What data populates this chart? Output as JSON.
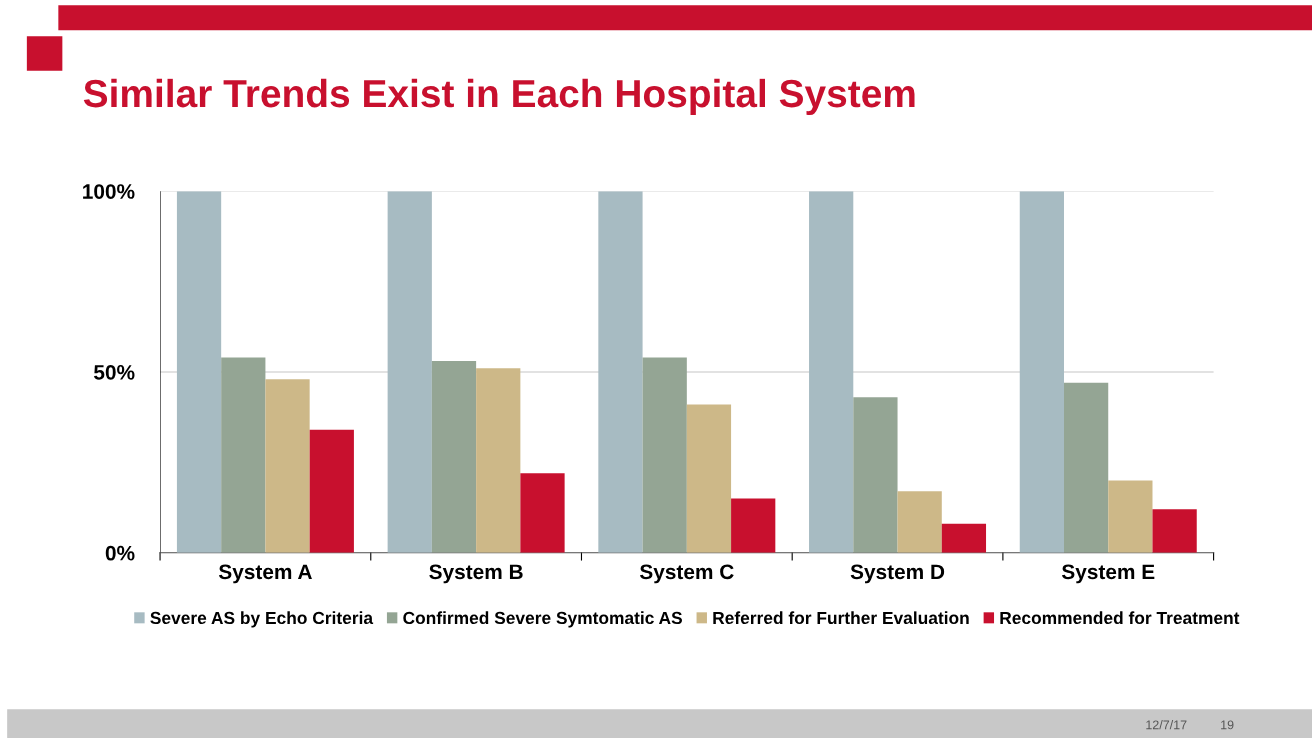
{
  "chart_data": {
    "type": "bar",
    "title": "Similar Trends Exist in Each Hospital System",
    "categories": [
      "System A",
      "System B",
      "System C",
      "System D",
      "System E"
    ],
    "series": [
      {
        "name": "Severe AS by Echo Criteria",
        "color": "#a7bbc2",
        "values": [
          100,
          100,
          100,
          100,
          100
        ]
      },
      {
        "name": "Confirmed Severe Symtomatic AS",
        "color": "#94a594",
        "values": [
          54,
          53,
          54,
          43,
          47
        ]
      },
      {
        "name": "Referred for Further Evaluation",
        "color": "#cdb888",
        "values": [
          48,
          51,
          41,
          17,
          20
        ]
      },
      {
        "name": "Recommended for Treatment",
        "color": "#c8102e",
        "values": [
          34,
          22,
          15,
          8,
          12
        ]
      }
    ],
    "ylim": [
      0,
      100
    ],
    "yticks": [
      {
        "value": 0,
        "label": "0%"
      },
      {
        "value": 50,
        "label": "50%"
      },
      {
        "value": 100,
        "label": "100%"
      }
    ],
    "grid": "y",
    "legend": "bottom",
    "annotations": [
      "12/7/17",
      "19"
    ]
  }
}
